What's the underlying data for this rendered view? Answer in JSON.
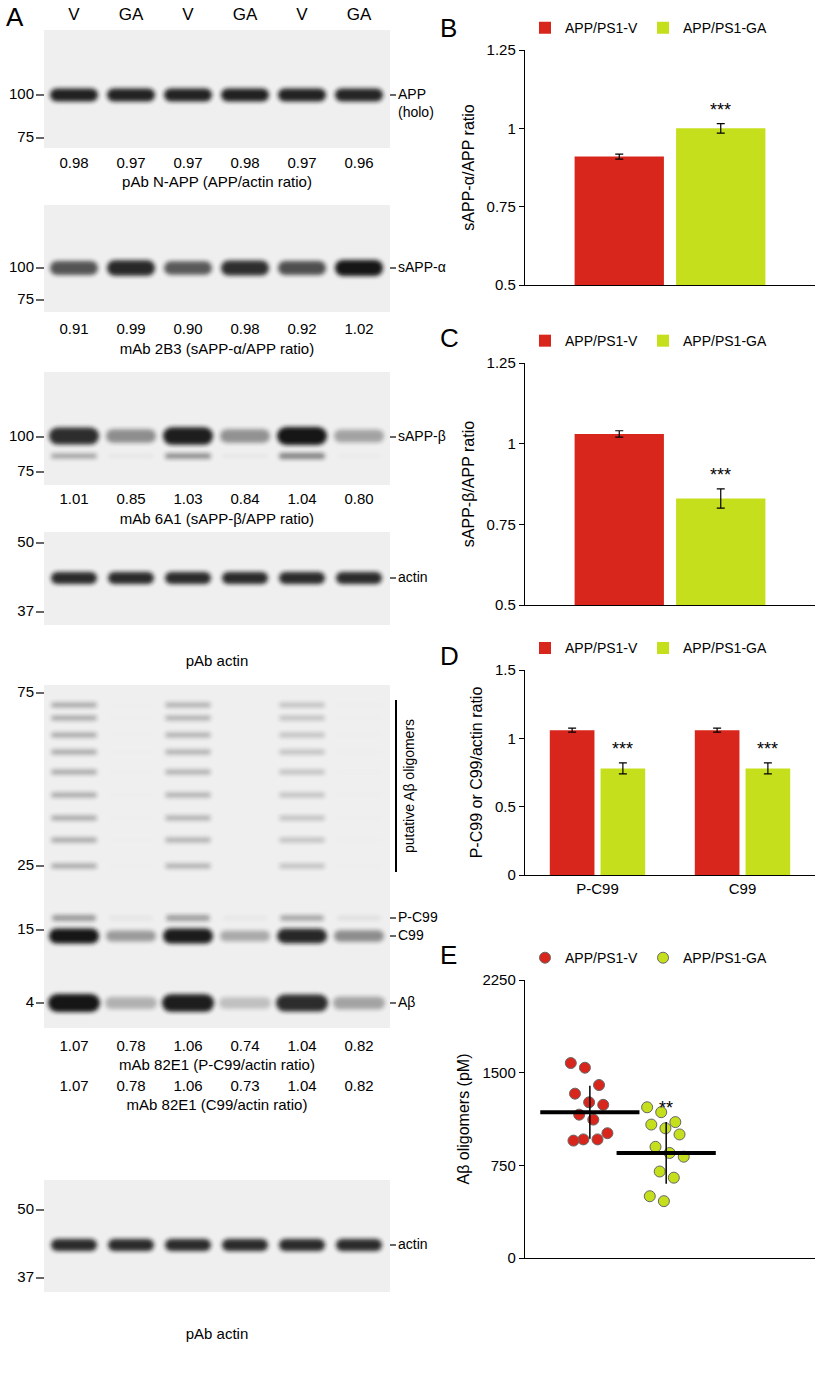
{
  "blot_panel": {
    "label": "A",
    "lanes": [
      "V",
      "GA",
      "V",
      "GA",
      "V",
      "GA"
    ],
    "blots": [
      {
        "markers": [
          100,
          75
        ],
        "labels": [
          [
            "APP",
            "(holo)"
          ]
        ],
        "rows": [
          {
            "values": [
              0.98,
              0.97,
              0.97,
              0.98,
              0.97,
              0.96
            ],
            "caption": "pAb N-APP (APP/actin ratio)"
          }
        ]
      },
      {
        "markers": [
          100,
          75
        ],
        "labels": [
          [
            "sAPP-α"
          ]
        ],
        "rows": [
          {
            "values": [
              0.91,
              0.99,
              {
                "value": 0.9,
                "label": "0.90"
              },
              0.98,
              0.92,
              1.02
            ],
            "caption": "mAb 2B3 (sAPP-α/APP ratio)"
          }
        ]
      },
      {
        "markers": [
          100,
          75
        ],
        "labels": [
          [
            "sAPP-β"
          ]
        ],
        "rows": [
          {
            "values": [
              1.01,
              0.85,
              1.03,
              0.84,
              1.04,
              {
                "value": 0.8,
                "label": "0.80"
              }
            ],
            "caption": "mAb 6A1 (sAPP-β/APP ratio)"
          }
        ]
      },
      {
        "markers": [
          50,
          37
        ],
        "labels": [
          [
            "actin"
          ]
        ],
        "caption": "pAb actin"
      },
      {
        "markers": [
          75,
          25,
          15,
          4
        ],
        "labels": [
          [
            "putative Aβ oligomers"
          ],
          [
            "P-C99"
          ],
          [
            "C99"
          ],
          [
            "Aβ"
          ]
        ],
        "rows": [
          {
            "values": [
              1.07,
              0.78,
              1.06,
              0.74,
              1.04,
              0.82
            ],
            "caption": "mAb 82E1 (P-C99/actin ratio)"
          },
          {
            "values": [
              1.07,
              0.78,
              1.06,
              0.73,
              1.04,
              0.82
            ],
            "caption": "mAb 82E1 (C99/actin ratio)"
          }
        ]
      },
      {
        "markers": [
          50,
          37
        ],
        "labels": [
          [
            "actin"
          ]
        ],
        "caption": "pAb actin"
      }
    ]
  },
  "chart_data": [
    {
      "type": "bar",
      "title": "B",
      "ylabel": "sAPP-α/APP ratio",
      "categories": [
        null
      ],
      "series": [
        {
          "name": "APP/PS1-V",
          "color": "#d9261c",
          "values": [
            0.91
          ],
          "error": [
            0.008
          ]
        },
        {
          "name": "APP/PS1-GA",
          "color": "#c5df1c",
          "values": [
            1.0
          ],
          "error": [
            0.015
          ]
        }
      ],
      "ylim": [
        0.5,
        1.25
      ],
      "yticks": [
        0.5,
        0.75,
        1,
        1.25
      ],
      "legend": "top left",
      "tick_labels": "y",
      "annotations": [
        {
          "text": "***",
          "x": 0,
          "series": "APP/PS1-GA"
        }
      ]
    },
    {
      "type": "bar",
      "title": "C",
      "ylabel": "sAPP-β/APP ratio",
      "categories": [
        null
      ],
      "series": [
        {
          "name": "APP/PS1-V",
          "color": "#d9261c",
          "values": [
            1.03
          ],
          "error": [
            0.01
          ]
        },
        {
          "name": "APP/PS1-GA",
          "color": "#c5df1c",
          "values": [
            0.83
          ],
          "error": [
            0.03
          ]
        }
      ],
      "ylim": [
        0.5,
        1.25
      ],
      "yticks": [
        0.5,
        0.75,
        1,
        1.25
      ],
      "legend": "top left",
      "tick_labels": "y",
      "annotations": [
        {
          "text": "***",
          "x": 0,
          "series": "APP/PS1-GA"
        }
      ]
    },
    {
      "type": "bar",
      "title": "D",
      "ylabel": "P-C99 or C99/actin ratio",
      "categories": [
        "P-C99",
        "C99"
      ],
      "series": [
        {
          "name": "APP/PS1-V",
          "color": "#d9261c",
          "values": [
            1.06,
            1.06
          ],
          "error": [
            0.015,
            0.015
          ]
        },
        {
          "name": "APP/PS1-GA",
          "color": "#c5df1c",
          "values": [
            0.78,
            0.78
          ],
          "error": [
            0.04,
            0.04
          ]
        }
      ],
      "ylim": [
        0,
        1.5
      ],
      "yticks": [
        0,
        0.5,
        1,
        1.5
      ],
      "legend": "top left",
      "annotations": [
        {
          "text": "***",
          "x": 0,
          "series": "APP/PS1-GA"
        },
        {
          "text": "***",
          "x": 1,
          "series": "APP/PS1-GA"
        }
      ]
    },
    {
      "type": "scatter",
      "title": "E",
      "ylabel": "Aβ oligomers (pM)",
      "marker": "circle",
      "series": [
        {
          "name": "APP/PS1-V",
          "color": "#d9261c",
          "values": [
            1578,
            1540,
            1400,
            1330,
            1260,
            1240,
            1160,
            1120,
            1010,
            960,
            960,
            950
          ],
          "mean": 1180,
          "error": 215
        },
        {
          "name": "APP/PS1-GA",
          "color": "#c5df1c",
          "values": [
            1220,
            1180,
            1100,
            1080,
            1050,
            1000,
            900,
            850,
            820,
            700,
            650,
            500,
            460
          ],
          "mean": 850,
          "error": 250
        }
      ],
      "ylim": [
        0,
        2250
      ],
      "yticks": [
        0,
        750,
        1500,
        2250
      ],
      "legend": "top left",
      "tick_labels": "y",
      "annotations": [
        {
          "text": "**",
          "x": 1,
          "series": "APP/PS1-GA"
        }
      ]
    }
  ]
}
